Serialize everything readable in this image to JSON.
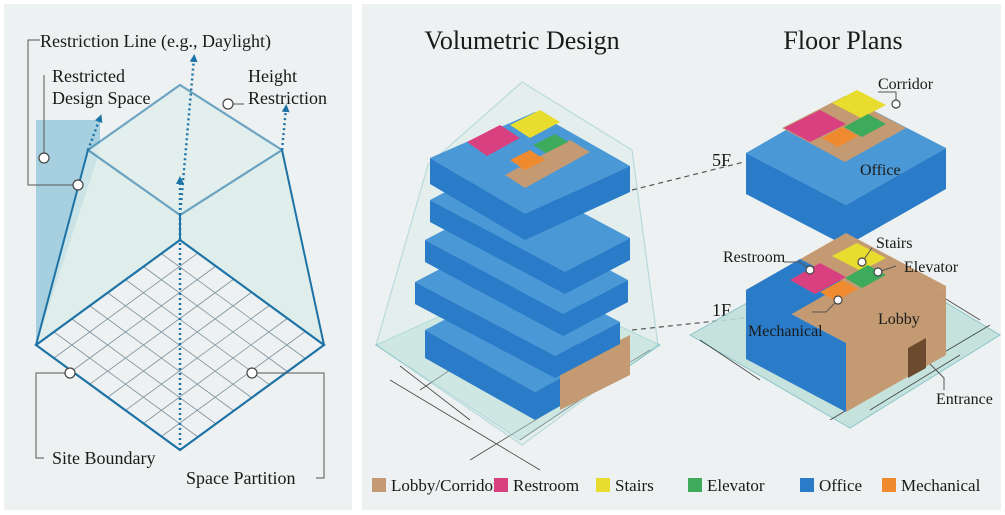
{
  "colors": {
    "lobby": "#C49A72",
    "restroom": "#D94080",
    "stairs": "#E8DC2E",
    "elevator": "#3DAA5C",
    "office": "#2A7CC8",
    "mechanical": "#F08A2E",
    "panel_bg": "#EEF1F1",
    "restriction_blue": "#1E73A6"
  },
  "left_panel": {
    "labels": {
      "restriction_line": "Restriction Line (e.g., Daylight)",
      "restricted_1": "Restricted",
      "restricted_2": "Design Space",
      "height_1": "Height",
      "height_2": "Restriction",
      "site_boundary": "Site Boundary",
      "space_partition": "Space Partition"
    }
  },
  "right_panel": {
    "volumetric_title": "Volumetric Design",
    "floorplans_title": "Floor Plans",
    "floor_5f": "5F",
    "floor_1f": "1F",
    "labels": {
      "corridor": "Corridor",
      "office": "Office",
      "restroom": "Restroom",
      "stairs": "Stairs",
      "elevator": "Elevator",
      "mechanical": "Mechanical",
      "lobby": "Lobby",
      "entrance": "Entrance"
    },
    "legend": [
      {
        "label": "Lobby/Corridor",
        "color": "#C49A72"
      },
      {
        "label": "Restroom",
        "color": "#D94080"
      },
      {
        "label": "Stairs",
        "color": "#E8DC2E"
      },
      {
        "label": "Elevator",
        "color": "#3DAA5C"
      },
      {
        "label": "Office",
        "color": "#2A7CC8"
      },
      {
        "label": "Mechanical",
        "color": "#F08A2E"
      }
    ]
  }
}
